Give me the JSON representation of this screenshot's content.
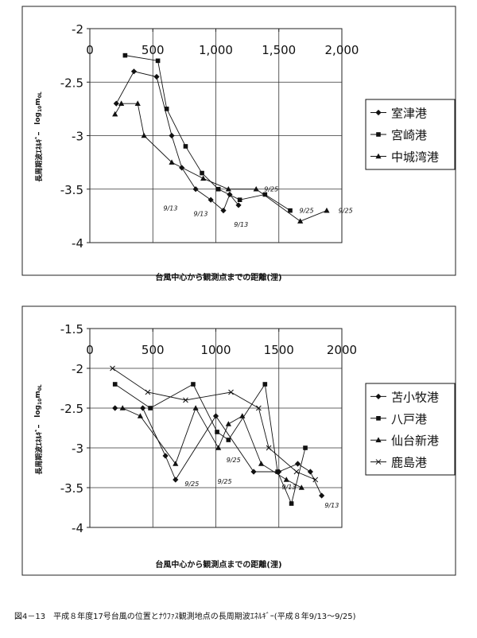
{
  "caption": "図4－13　平成８年度17号台風の位置とﾅｳﾌｧｽ観測地点の長周期波ｴﾈﾙｷﾞｰ(平成８年9/13～9/25)",
  "chart_data": [
    {
      "type": "scatter",
      "xlabel": "台風中心から観測点までの距離(浬)",
      "ylabel_main": "長周期波ｴﾈﾙｷﾞｰ",
      "ylabel_sym": "log",
      "ylabel_sub": "10",
      "ylabel_m": "m",
      "ylabel_msub": "0L",
      "xlim": [
        0,
        2000
      ],
      "ylim": [
        -4,
        -2
      ],
      "xticks": [
        0,
        500,
        1000,
        1500,
        2000
      ],
      "xtick_labels": [
        "0",
        "500",
        "1,000",
        "1,500",
        "2,000"
      ],
      "yticks": [
        -2,
        -2.5,
        -3,
        -3.5,
        -4
      ],
      "ytick_labels": [
        "-2",
        "-2.5",
        "-3",
        "-3.5",
        "-4"
      ],
      "grid": true,
      "legend_position": "right",
      "series": [
        {
          "name": "室津港",
          "marker": "diamond",
          "points": [
            [
              210,
              -2.7
            ],
            [
              350,
              -2.4
            ],
            [
              530,
              -2.45
            ],
            [
              650,
              -3.0
            ],
            [
              730,
              -3.3
            ],
            [
              840,
              -3.5
            ],
            [
              960,
              -3.6
            ],
            [
              1060,
              -3.7
            ],
            [
              1110,
              -3.55
            ],
            [
              1180,
              -3.65
            ]
          ]
        },
        {
          "name": "宮崎港",
          "marker": "square",
          "points": [
            [
              280,
              -2.25
            ],
            [
              540,
              -2.3
            ],
            [
              610,
              -2.75
            ],
            [
              760,
              -3.1
            ],
            [
              890,
              -3.35
            ],
            [
              1020,
              -3.5
            ],
            [
              1190,
              -3.6
            ],
            [
              1390,
              -3.55
            ],
            [
              1590,
              -3.7
            ]
          ]
        },
        {
          "name": "中城湾港",
          "marker": "triangle",
          "points": [
            [
              200,
              -2.8
            ],
            [
              250,
              -2.7
            ],
            [
              380,
              -2.7
            ],
            [
              430,
              -3.0
            ],
            [
              650,
              -3.25
            ],
            [
              900,
              -3.4
            ],
            [
              1100,
              -3.5
            ],
            [
              1320,
              -3.5
            ],
            [
              1670,
              -3.8
            ],
            [
              1880,
              -3.7
            ]
          ]
        }
      ],
      "annotations": [
        {
          "text": "9/13",
          "x": 640,
          "y": -3.7
        },
        {
          "text": "9/13",
          "x": 880,
          "y": -3.75
        },
        {
          "text": "9/13",
          "x": 1200,
          "y": -3.85
        },
        {
          "text": "9/25",
          "x": 1440,
          "y": -3.52
        },
        {
          "text": "9/25",
          "x": 1720,
          "y": -3.72
        },
        {
          "text": "9/25",
          "x": 2030,
          "y": -3.72
        }
      ]
    },
    {
      "type": "scatter",
      "xlabel": "台風中心から観測点までの距離(浬)",
      "ylabel_main": "長周期波ｴﾈﾙｷﾞｰ",
      "ylabel_sym": "log",
      "ylabel_sub": "10",
      "ylabel_m": "m",
      "ylabel_msub": "0L",
      "xlim": [
        0,
        2000
      ],
      "ylim": [
        -4,
        -1.5
      ],
      "xticks": [
        0,
        500,
        1000,
        1500,
        2000
      ],
      "xtick_labels": [
        "0",
        "500",
        "1000",
        "1500",
        "2000"
      ],
      "yticks": [
        -1.5,
        -2,
        -2.5,
        -3,
        -3.5,
        -4
      ],
      "ytick_labels": [
        "-1.5",
        "-2",
        "-2.5",
        "-3",
        "-3.5",
        "-4"
      ],
      "grid": true,
      "legend_position": "right",
      "series": [
        {
          "name": "苫小牧港",
          "marker": "diamond",
          "points": [
            [
              200,
              -2.5
            ],
            [
              420,
              -2.5
            ],
            [
              600,
              -3.1
            ],
            [
              680,
              -3.4
            ],
            [
              1000,
              -2.6
            ],
            [
              1300,
              -3.3
            ],
            [
              1500,
              -3.3
            ],
            [
              1650,
              -3.2
            ],
            [
              1750,
              -3.3
            ],
            [
              1840,
              -3.6
            ]
          ]
        },
        {
          "name": "八戸港",
          "marker": "square",
          "points": [
            [
              200,
              -2.2
            ],
            [
              480,
              -2.5
            ],
            [
              820,
              -2.2
            ],
            [
              1010,
              -2.8
            ],
            [
              1100,
              -2.9
            ],
            [
              1390,
              -2.2
            ],
            [
              1490,
              -3.3
            ],
            [
              1600,
              -3.7
            ],
            [
              1710,
              -3.0
            ]
          ]
        },
        {
          "name": "仙台新港",
          "marker": "triangle",
          "points": [
            [
              260,
              -2.5
            ],
            [
              400,
              -2.6
            ],
            [
              680,
              -3.2
            ],
            [
              840,
              -2.5
            ],
            [
              1020,
              -3.0
            ],
            [
              1100,
              -2.7
            ],
            [
              1210,
              -2.6
            ],
            [
              1360,
              -3.2
            ],
            [
              1560,
              -3.4
            ],
            [
              1680,
              -3.5
            ]
          ]
        },
        {
          "name": "鹿島港",
          "marker": "cross",
          "points": [
            [
              180,
              -2.0
            ],
            [
              460,
              -2.3
            ],
            [
              760,
              -2.4
            ],
            [
              1120,
              -2.3
            ],
            [
              1340,
              -2.5
            ],
            [
              1420,
              -3.0
            ],
            [
              1640,
              -3.3
            ],
            [
              1790,
              -3.4
            ]
          ]
        }
      ],
      "annotations": [
        {
          "text": "9/25",
          "x": 810,
          "y": -3.48
        },
        {
          "text": "9/25",
          "x": 1070,
          "y": -3.45
        },
        {
          "text": "9/25",
          "x": 1140,
          "y": -3.18
        },
        {
          "text": "9/13",
          "x": 1580,
          "y": -3.52
        },
        {
          "text": "9/13",
          "x": 1920,
          "y": -3.75
        }
      ]
    }
  ]
}
